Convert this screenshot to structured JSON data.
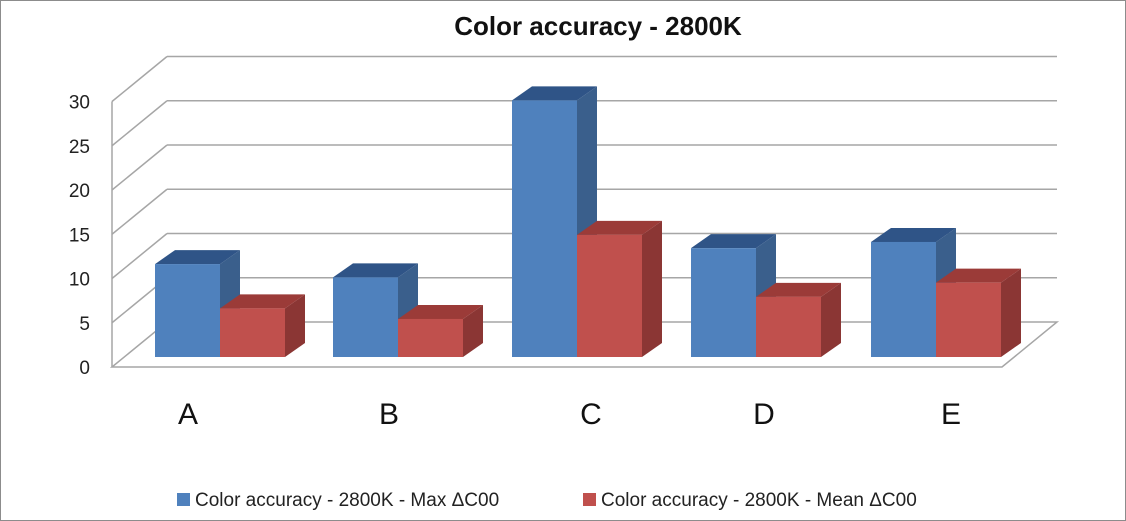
{
  "chart_data": {
    "type": "bar",
    "title": "Color accuracy - 2800K",
    "categories": [
      "A",
      "B",
      "C",
      "D",
      "E"
    ],
    "series": [
      {
        "name": "Color accuracy - 2800K - Max ΔC00",
        "values": [
          10.5,
          9.0,
          29.0,
          12.3,
          13.0
        ]
      },
      {
        "name": "Color accuracy - 2800K - Mean ΔC00",
        "values": [
          5.5,
          4.3,
          13.8,
          6.8,
          8.4
        ]
      }
    ],
    "ylim": [
      0,
      30
    ],
    "yticks": [
      "0",
      "5",
      "10",
      "15",
      "20",
      "25",
      "30"
    ],
    "grid": true,
    "legend": "bottom",
    "colors": {
      "series1_front": "#4f81bd",
      "series1_side": "#3a5f8c",
      "series1_top": "#2f5487",
      "series2_front": "#c0504d",
      "series2_side": "#8b3634",
      "series2_top": "#9b3b38",
      "grid": "#a6a6a6"
    }
  }
}
